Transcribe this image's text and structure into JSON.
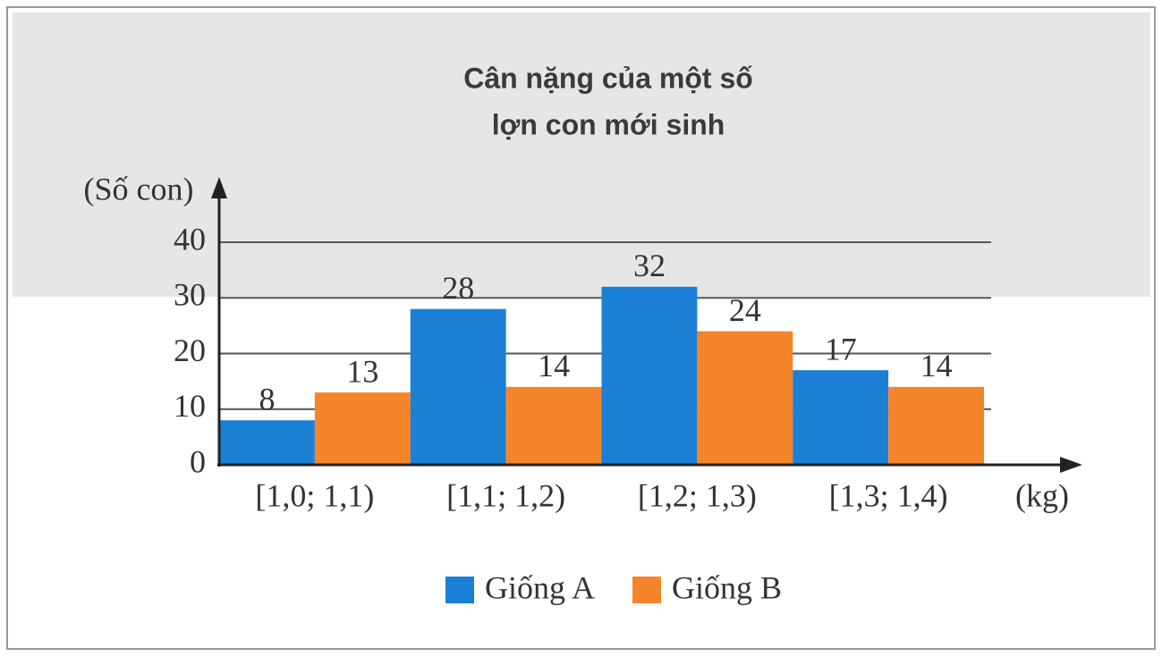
{
  "chart_data": {
    "type": "bar",
    "title": [
      "Cân nặng của một số",
      "lợn con mới sinh"
    ],
    "y_label": "(Số con)",
    "x_label": "(kg)",
    "categories": [
      "[1,0; 1,1)",
      "[1,1; 1,2)",
      "[1,2; 1,3)",
      "[1,3; 1,4)"
    ],
    "series": [
      {
        "name": "Giống A",
        "color": "#1b7fd6",
        "values": [
          8,
          28,
          32,
          17
        ]
      },
      {
        "name": "Giống B",
        "color": "#f5852b",
        "values": [
          13,
          14,
          24,
          14
        ]
      }
    ],
    "ylim": [
      0,
      40
    ],
    "yticks": [
      0,
      10,
      20,
      30,
      40
    ],
    "grid": true
  }
}
